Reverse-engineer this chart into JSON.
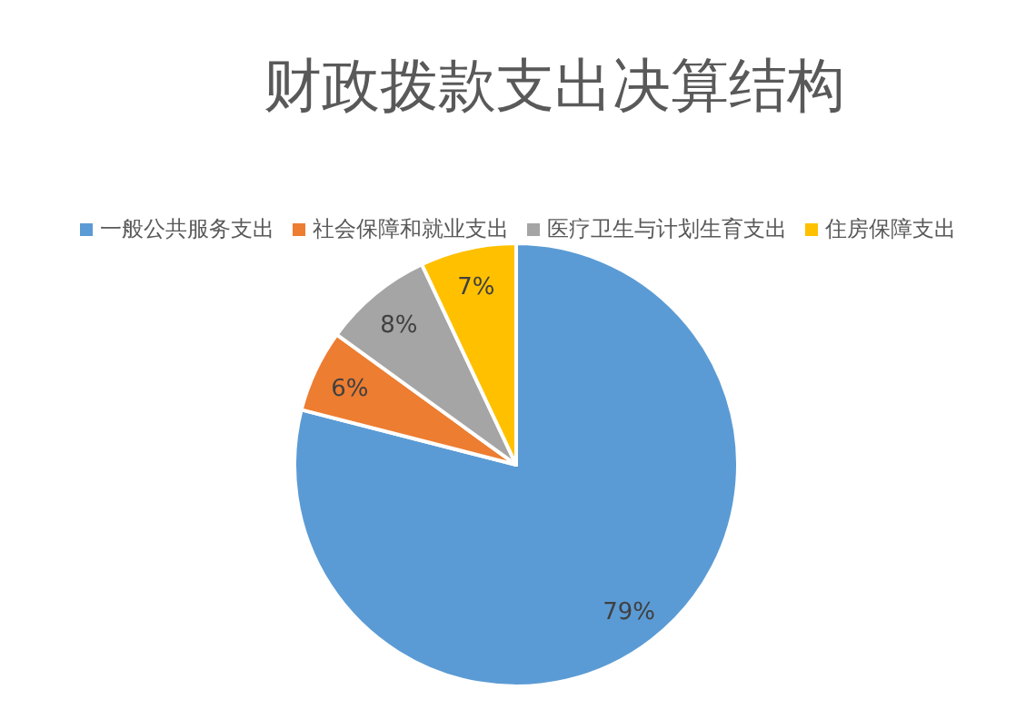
{
  "chart_data": {
    "type": "pie",
    "title": "财政拨款支出决算结构",
    "categories": [
      "一般公共服务支出",
      "社会保障和就业支出",
      "医疗卫生与计划生育支出",
      "住房保障支出"
    ],
    "values": [
      79,
      6,
      8,
      7
    ],
    "colors": [
      "#5b9bd5",
      "#ed7d31",
      "#a5a5a5",
      "#ffc000"
    ],
    "value_labels": [
      "79%",
      "6%",
      "8%",
      "7%"
    ],
    "legend": "top"
  }
}
